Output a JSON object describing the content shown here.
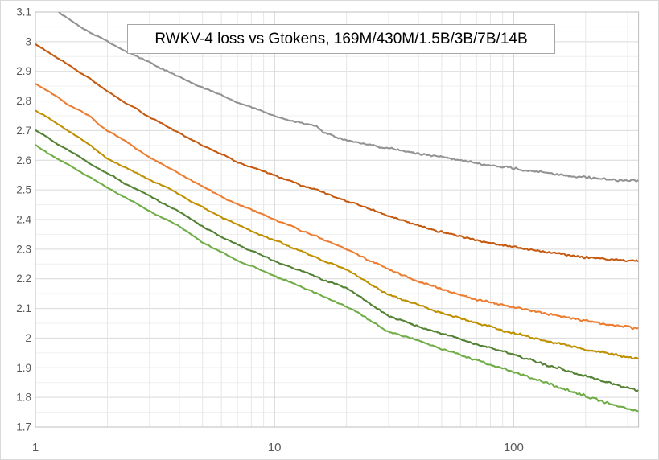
{
  "chart_data": {
    "type": "line",
    "title": "RWKV-4 loss vs Gtokens, 169M/430M/1.5B/3B/7B/14B",
    "xlabel": "",
    "ylabel": "",
    "x_scale": "log",
    "grid": true,
    "legend": "none",
    "xlim": [
      1,
      333
    ],
    "ylim": [
      1.7,
      3.1
    ],
    "x_ticks": [
      "1",
      "10",
      "100"
    ],
    "y_ticks": [
      "3.1",
      "3",
      "2.9",
      "2.8",
      "2.7",
      "2.6",
      "2.5",
      "2.4",
      "2.3",
      "2.2",
      "2.1",
      "2",
      "1.9",
      "1.8",
      "1.7"
    ],
    "axis_label_color": "#595959",
    "major_grid_color": "#d9d9d9",
    "minor_grid_color": "#efefef",
    "vertical_grid_color": "#e7e7e7",
    "plot_border_color": "#bfbfbf",
    "x": [
      1,
      1.3,
      1.7,
      2,
      2.5,
      3,
      4,
      5,
      7,
      10,
      13,
      15,
      16,
      18,
      20,
      25,
      30,
      40,
      50,
      70,
      100,
      140,
      200,
      260,
      300,
      332
    ],
    "series": [
      {
        "name": "169M",
        "color": "#939393",
        "values": [
          3.16,
          3.09,
          3.03,
          3.0,
          2.96,
          2.93,
          2.88,
          2.845,
          2.795,
          2.75,
          2.725,
          2.715,
          2.695,
          2.678,
          2.668,
          2.652,
          2.64,
          2.623,
          2.61,
          2.59,
          2.572,
          2.556,
          2.543,
          2.535,
          2.532,
          2.53
        ]
      },
      {
        "name": "430M",
        "color": "#C55A11",
        "values": [
          2.99,
          2.935,
          2.875,
          2.83,
          2.785,
          2.745,
          2.69,
          2.65,
          2.595,
          2.55,
          2.515,
          2.5,
          2.49,
          2.477,
          2.462,
          2.435,
          2.41,
          2.38,
          2.357,
          2.33,
          2.308,
          2.289,
          2.272,
          2.263,
          2.26,
          2.26
        ]
      },
      {
        "name": "1.5B",
        "color": "#ED7D31",
        "values": [
          2.86,
          2.8,
          2.745,
          2.7,
          2.652,
          2.61,
          2.555,
          2.51,
          2.452,
          2.4,
          2.362,
          2.345,
          2.332,
          2.316,
          2.3,
          2.262,
          2.23,
          2.192,
          2.165,
          2.13,
          2.105,
          2.082,
          2.058,
          2.043,
          2.036,
          2.032
        ]
      },
      {
        "name": "3B",
        "color": "#BF9000",
        "values": [
          2.77,
          2.712,
          2.648,
          2.605,
          2.568,
          2.535,
          2.485,
          2.44,
          2.382,
          2.33,
          2.292,
          2.272,
          2.26,
          2.246,
          2.232,
          2.185,
          2.145,
          2.112,
          2.085,
          2.05,
          2.018,
          1.988,
          1.962,
          1.945,
          1.936,
          1.93
        ]
      },
      {
        "name": "7B",
        "color": "#548235",
        "values": [
          2.7,
          2.645,
          2.588,
          2.555,
          2.512,
          2.48,
          2.425,
          2.375,
          2.315,
          2.26,
          2.225,
          2.208,
          2.196,
          2.182,
          2.168,
          2.118,
          2.073,
          2.04,
          2.015,
          1.98,
          1.945,
          1.908,
          1.872,
          1.845,
          1.831,
          1.822
        ]
      },
      {
        "name": "14B",
        "color": "#70AD47",
        "values": [
          2.65,
          2.596,
          2.54,
          2.51,
          2.465,
          2.43,
          2.375,
          2.322,
          2.262,
          2.21,
          2.172,
          2.152,
          2.14,
          2.124,
          2.108,
          2.06,
          2.022,
          1.99,
          1.962,
          1.927,
          1.886,
          1.845,
          1.805,
          1.775,
          1.76,
          1.752
        ]
      }
    ]
  }
}
